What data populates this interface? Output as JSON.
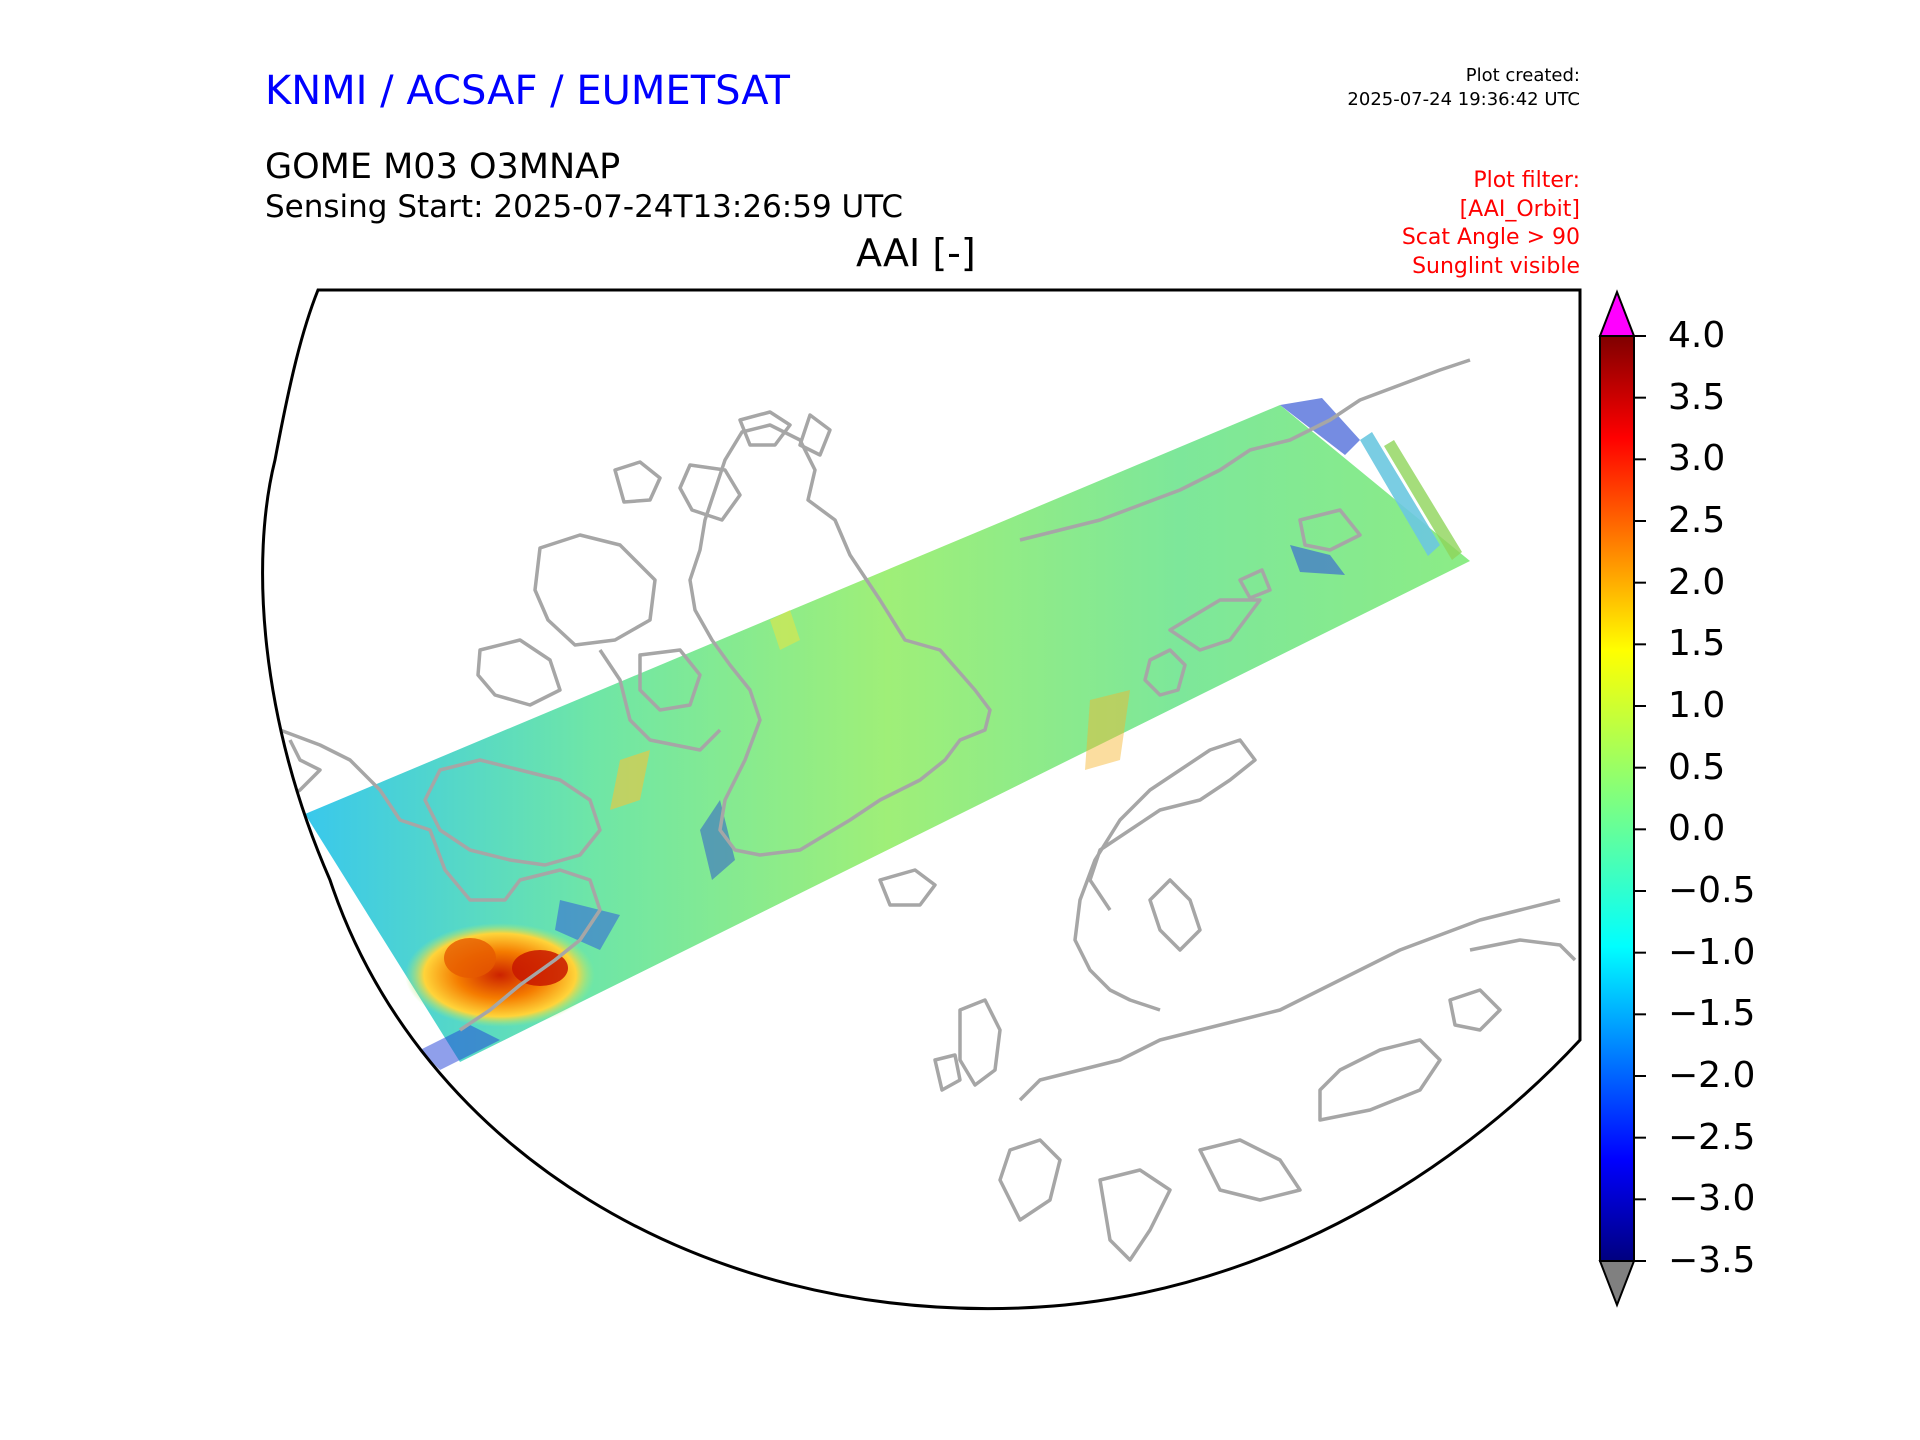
{
  "header": {
    "brand": "KNMI / ACSAF / EUMETSAT",
    "created_label": "Plot created:",
    "created_time": "2025-07-24 19:36:42 UTC",
    "product": "GOME M03 O3MNAP",
    "sensing_start": "Sensing Start: 2025-07-24T13:26:59 UTC",
    "plot_title": "AAI [-]",
    "filter_lines": [
      "Plot filter:",
      "[AAI_Orbit]",
      "Scat Angle > 90",
      "Sunglint visible"
    ]
  },
  "colorbar": {
    "ticks": [
      "4.0",
      "3.5",
      "3.0",
      "2.5",
      "2.0",
      "1.5",
      "1.0",
      "0.5",
      "0.0",
      "−0.5",
      "−1.0",
      "−1.5",
      "−2.0",
      "−2.5",
      "−3.0",
      "−3.5"
    ],
    "min": -3.5,
    "max": 4.0,
    "over_color": "#ff00ff",
    "under_color": "#808080",
    "colormap": "jet"
  },
  "map": {
    "projection": "north polar",
    "coastline_color": "#a6a6a6",
    "swath_typical_value": 0.3,
    "hotspot_max_value": 3.2
  }
}
